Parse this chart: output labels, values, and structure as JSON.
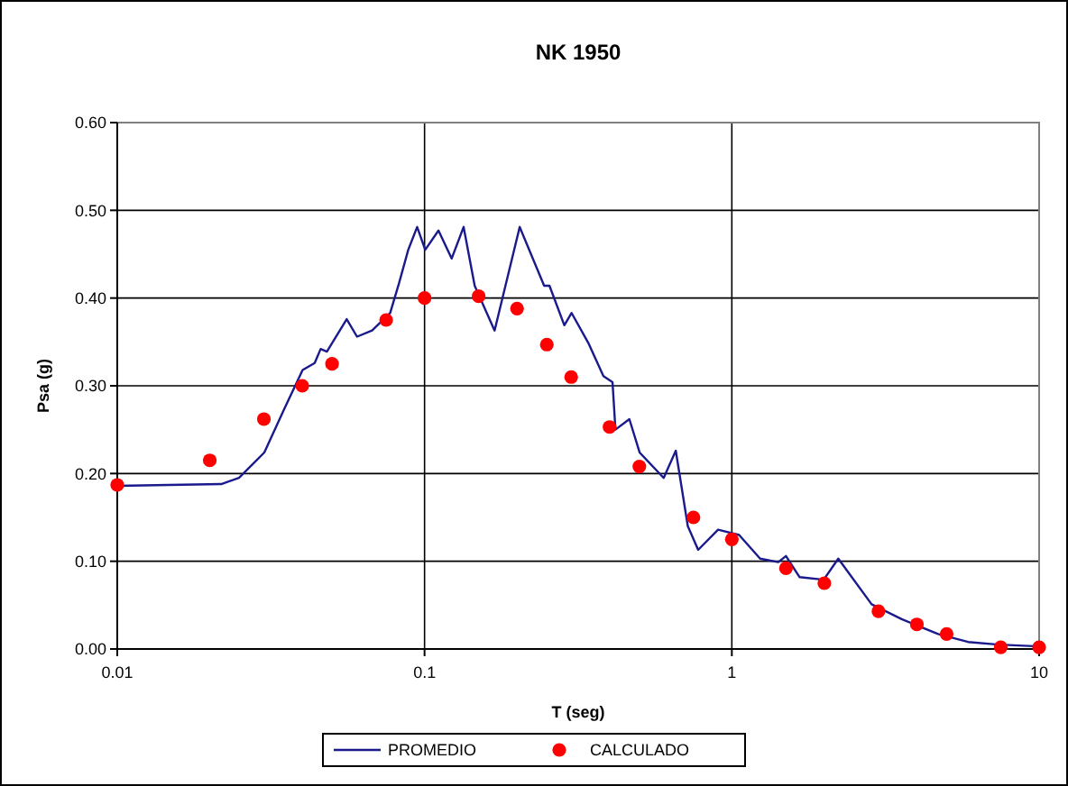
{
  "chart_data": {
    "type": "line",
    "title": "NK 1950",
    "xlabel": "T (seg)",
    "ylabel": "Psa (g)",
    "log": "x",
    "grid": true,
    "legend": "bottom",
    "xlim": [
      0.01,
      10
    ],
    "xticks": [
      0.01,
      0.1,
      1,
      10
    ],
    "ylim": [
      0,
      0.6
    ],
    "yticks": [
      {
        "value": 0,
        "label": "0.00"
      },
      {
        "value": 0.1,
        "label": "0.10"
      },
      {
        "value": 0.2,
        "label": "0.20"
      },
      {
        "value": 0.3,
        "label": "0.30"
      },
      {
        "value": 0.4,
        "label": "0.40"
      },
      {
        "value": 0.5,
        "label": "0.50"
      },
      {
        "value": 0.6,
        "label": "0.60"
      }
    ],
    "series": [
      {
        "name": "PROMEDIO",
        "color": "#1a1a8c",
        "marker": "none",
        "x": [
          0.01,
          0.0218,
          0.0249,
          0.0301,
          0.035,
          0.0401,
          0.0439,
          0.0459,
          0.0481,
          0.0558,
          0.0603,
          0.0675,
          0.0773,
          0.0826,
          0.0885,
          0.0946,
          0.1005,
          0.111,
          0.1225,
          0.134,
          0.1456,
          0.169,
          0.204,
          0.245,
          0.255,
          0.285,
          0.301,
          0.341,
          0.382,
          0.409,
          0.418,
          0.464,
          0.501,
          0.6,
          0.657,
          0.719,
          0.777,
          0.902,
          1.056,
          1.236,
          1.416,
          1.5,
          1.66,
          1.99,
          2.22,
          2.85,
          3.57,
          4.69,
          5.87,
          7.36,
          10
        ],
        "values": [
          0.186,
          0.188,
          0.195,
          0.224,
          0.274,
          0.318,
          0.326,
          0.342,
          0.339,
          0.376,
          0.356,
          0.363,
          0.383,
          0.417,
          0.455,
          0.481,
          0.455,
          0.477,
          0.445,
          0.481,
          0.414,
          0.363,
          0.481,
          0.414,
          0.414,
          0.369,
          0.383,
          0.349,
          0.311,
          0.304,
          0.25,
          0.262,
          0.224,
          0.195,
          0.226,
          0.14,
          0.113,
          0.136,
          0.13,
          0.103,
          0.099,
          0.106,
          0.082,
          0.079,
          0.103,
          0.051,
          0.034,
          0.017,
          0.008,
          0.005,
          0.003
        ]
      },
      {
        "name": "CALCULADO",
        "type": "scatter",
        "color": "#ff0000",
        "marker": "circle",
        "x": [
          0.01,
          0.02,
          0.03,
          0.04,
          0.05,
          0.075,
          0.1,
          0.15,
          0.2,
          0.25,
          0.3,
          0.4,
          0.5,
          0.75,
          1,
          1.5,
          2,
          3,
          4,
          5,
          7.5,
          10
        ],
        "values": [
          0.187,
          0.215,
          0.262,
          0.3,
          0.325,
          0.375,
          0.4,
          0.402,
          0.388,
          0.347,
          0.31,
          0.253,
          0.208,
          0.15,
          0.125,
          0.092,
          0.075,
          0.043,
          0.028,
          0.017,
          0.002,
          0.002
        ]
      }
    ]
  }
}
